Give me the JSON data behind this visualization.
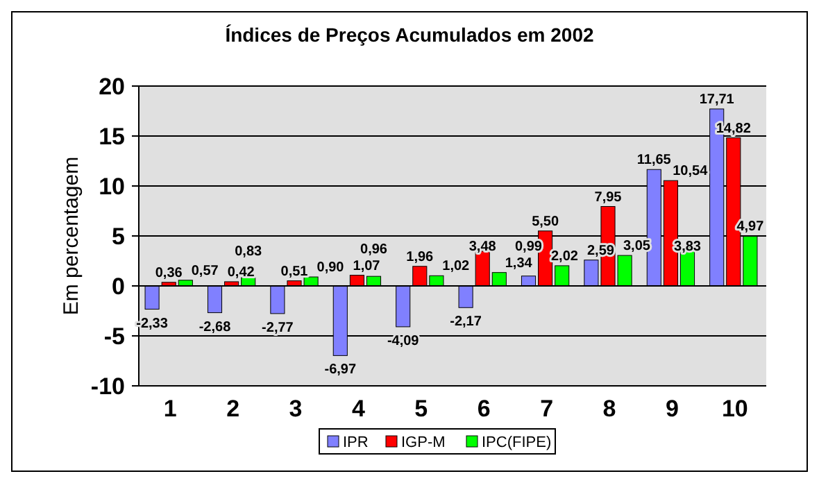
{
  "chart_data": {
    "type": "bar",
    "title": "Índices de Preços Acumulados em 2002",
    "ylabel": "Em percentagem",
    "categories": [
      "1",
      "2",
      "3",
      "4",
      "5",
      "6",
      "7",
      "8",
      "9",
      "10"
    ],
    "series": [
      {
        "name": "IPR",
        "color": "#8080ff",
        "values": [
          -2.33,
          -2.68,
          -2.77,
          -6.97,
          -4.09,
          -2.17,
          0.99,
          2.59,
          11.65,
          17.71
        ],
        "value_labels": [
          "-2,33",
          "-2,68",
          "-2,77",
          "-6,97",
          "-4,09",
          "-2,17",
          "0,99",
          "2,59",
          "11,65",
          "17,71"
        ]
      },
      {
        "name": "IGP-M",
        "color": "#ff0000",
        "values": [
          0.36,
          0.42,
          0.51,
          1.07,
          1.96,
          3.48,
          5.5,
          7.95,
          10.54,
          14.82
        ],
        "value_labels": [
          "0,36",
          "0,42",
          "0,51",
          "1,07",
          "1,96",
          "3,48",
          "5,50",
          "7,95",
          "10,54",
          "14,82"
        ]
      },
      {
        "name": "IPC(FIPE)",
        "color": "#00ff00",
        "values": [
          0.57,
          0.83,
          0.9,
          0.96,
          1.02,
          1.34,
          2.02,
          3.05,
          3.83,
          4.97
        ],
        "value_labels": [
          "0,57",
          "0,83",
          "0,90",
          "0,96",
          "1,02",
          "1,34",
          "2,02",
          "3,05",
          "3,83",
          "4,97"
        ]
      }
    ],
    "ylim": [
      -10,
      20
    ],
    "yticks": [
      -10,
      -5,
      0,
      5,
      10,
      15,
      20
    ],
    "grid": "y",
    "legend": "bottom"
  }
}
